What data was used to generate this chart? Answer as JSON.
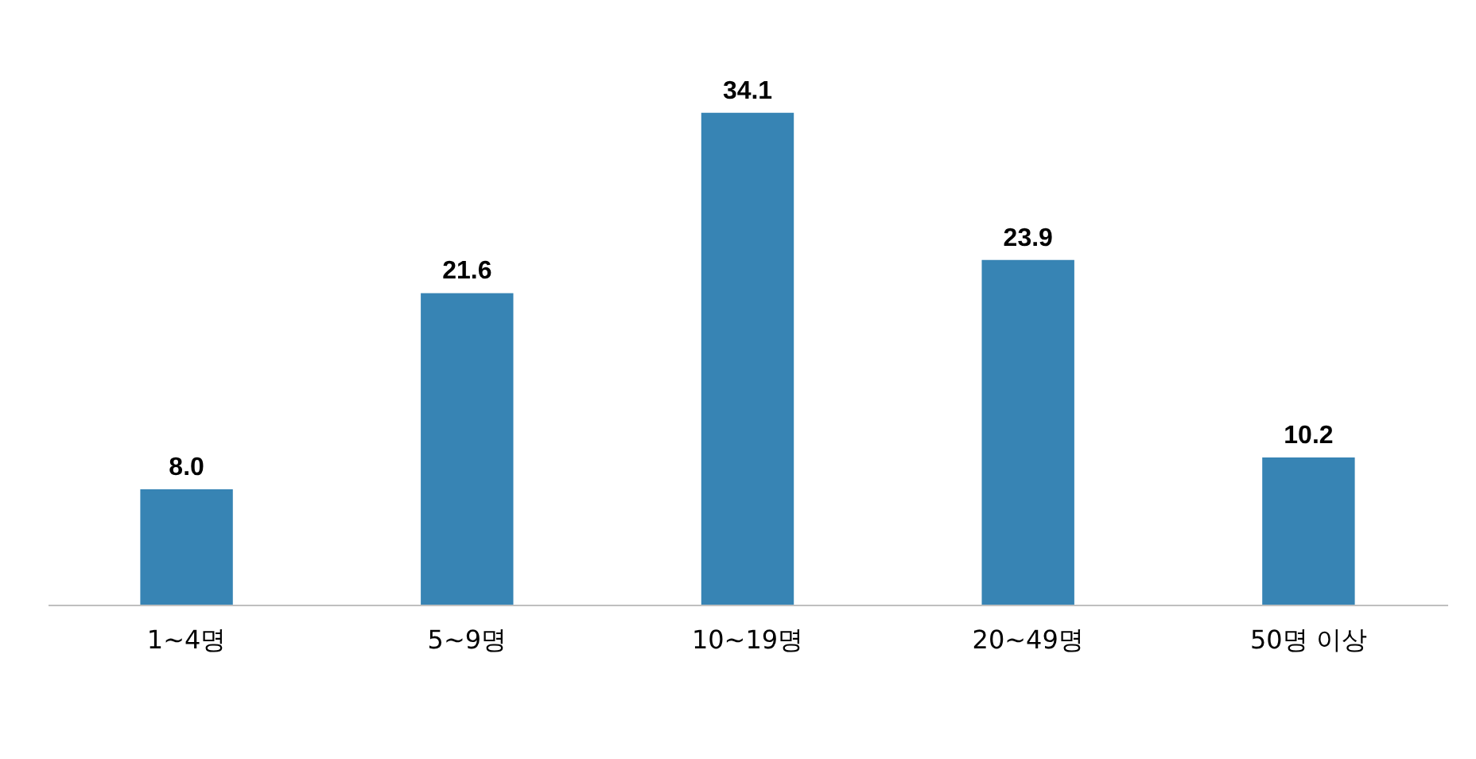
{
  "chart_data": {
    "type": "bar",
    "categories": [
      "1~4명",
      "5~9명",
      "10~19명",
      "20~49명",
      "50명 이상"
    ],
    "values": [
      8.0,
      21.6,
      34.1,
      23.9,
      10.2
    ],
    "color": "#3784b4",
    "value_labels": [
      "8.0",
      "21.6",
      "34.1",
      "23.9",
      "10.2"
    ],
    "grid": false
  }
}
